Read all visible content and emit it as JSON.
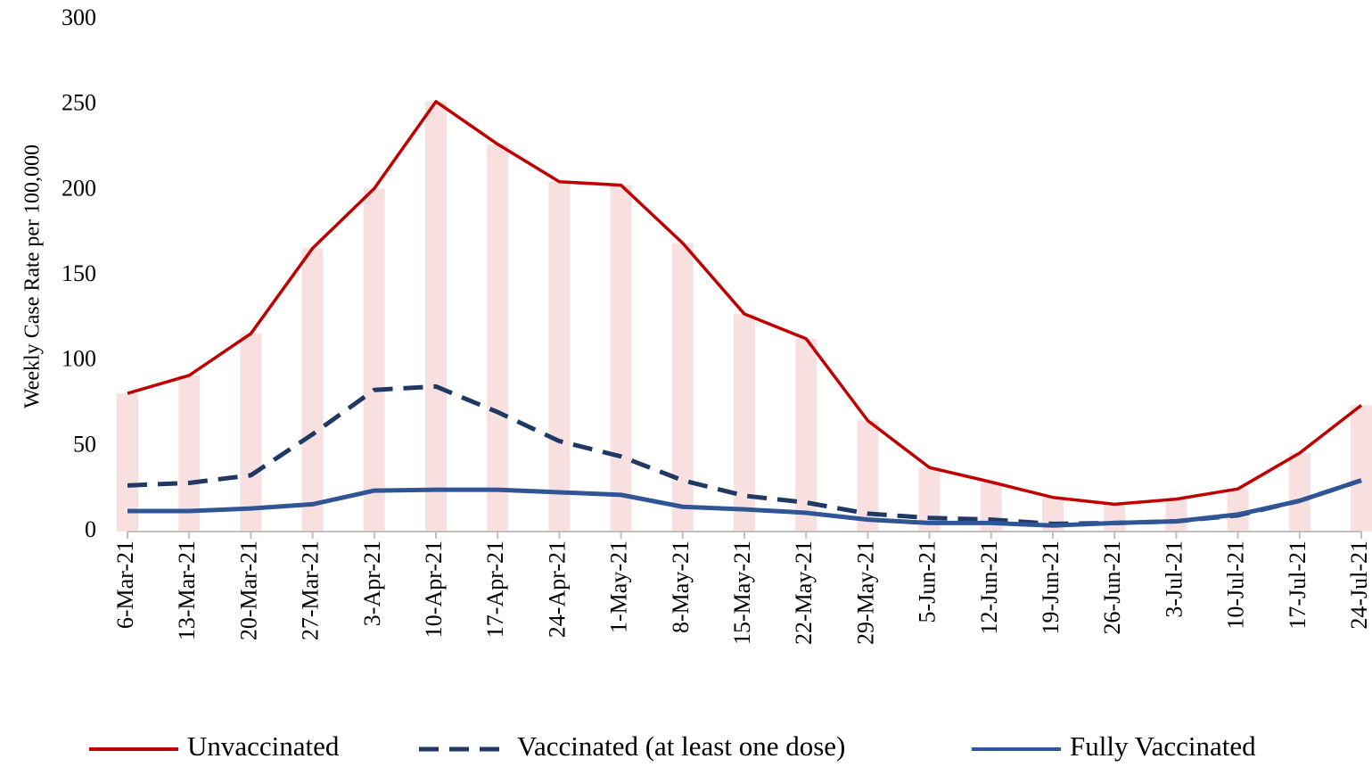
{
  "chart_data": {
    "type": "line",
    "y_label": "Weekly Case Rate per 100,000",
    "categories": [
      "6-Mar-21",
      "13-Mar-21",
      "20-Mar-21",
      "27-Mar-21",
      "3-Apr-21",
      "10-Apr-21",
      "17-Apr-21",
      "24-Apr-21",
      "1-May-21",
      "8-May-21",
      "15-May-21",
      "22-May-21",
      "29-May-21",
      "5-Jun-21",
      "12-Jun-21",
      "19-Jun-21",
      "26-Jun-21",
      "3-Jul-21",
      "10-Jul-21",
      "17-Jul-21",
      "24-Jul-21"
    ],
    "series": [
      {
        "name": "Unvaccinated",
        "color": "#c00000",
        "style": "solid",
        "drop_bars": true,
        "values": [
          81,
          91.5,
          116,
          166,
          201,
          252,
          227,
          205,
          203,
          169,
          127.5,
          113,
          65,
          37.5,
          29,
          20,
          16,
          19,
          25,
          46,
          74
        ]
      },
      {
        "name": "Vaccinated (at least one dose)",
        "color": "#203864",
        "style": "dashed",
        "values": [
          27,
          28.5,
          33,
          57,
          83,
          85,
          70,
          53,
          44,
          30,
          21,
          17,
          10.5,
          8,
          7,
          4.5,
          5,
          6,
          9.5,
          18,
          30
        ]
      },
      {
        "name": "Fully Vaccinated",
        "color": "#2f5597",
        "style": "solid",
        "values": [
          12,
          12,
          13.5,
          16,
          24,
          24.5,
          24.5,
          23,
          21.5,
          14.5,
          13,
          11,
          7,
          5,
          5,
          3.5,
          5,
          6,
          10,
          18,
          30
        ]
      }
    ],
    "ylim": [
      0,
      300
    ],
    "yticks": [
      0,
      50,
      100,
      150,
      200,
      250,
      300
    ],
    "legend": "bottom",
    "grid": false
  }
}
